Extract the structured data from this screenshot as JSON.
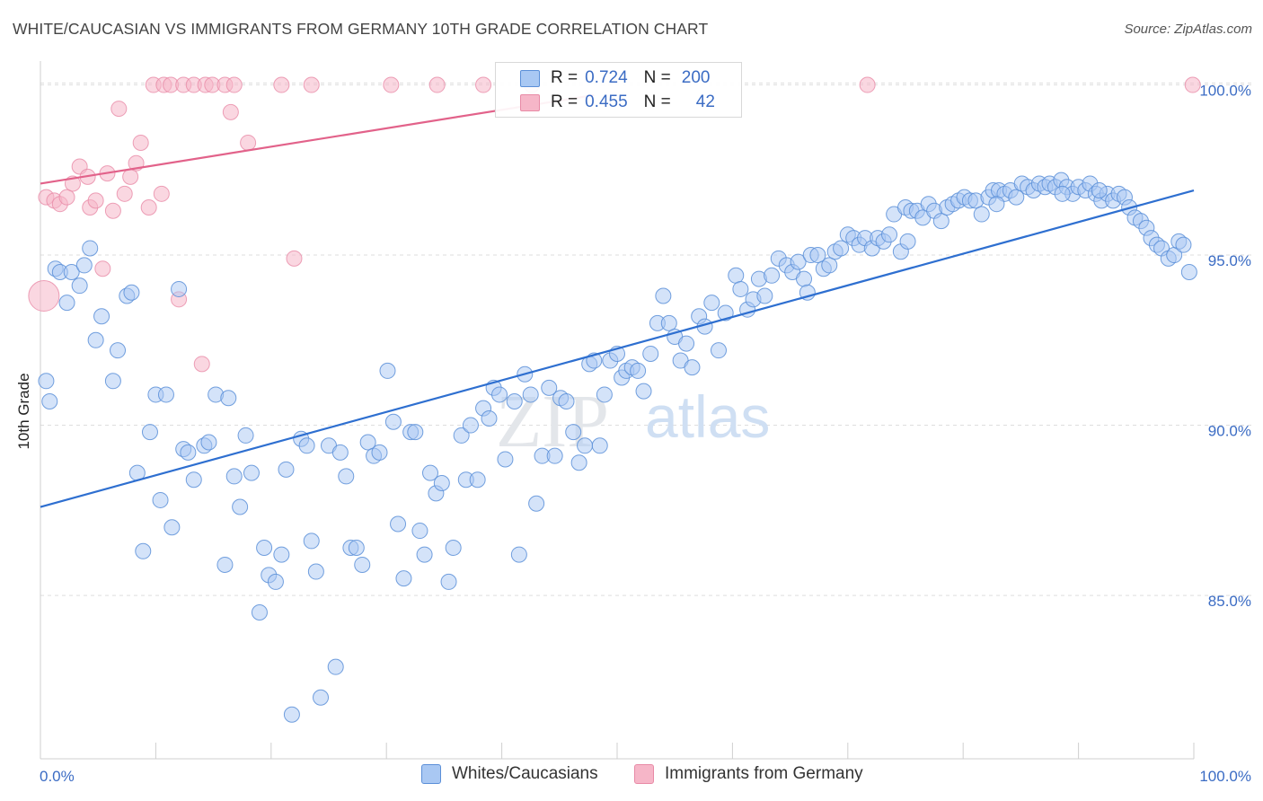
{
  "header": {
    "title": "WHITE/CAUCASIAN VS IMMIGRANTS FROM GERMANY 10TH GRADE CORRELATION CHART",
    "source": "Source: ZipAtlas.com"
  },
  "legend": {
    "rows": [
      {
        "r_label": "R =",
        "r_value": "0.724",
        "n_label": "N =",
        "n_value": "200",
        "color": "#a9c8f3"
      },
      {
        "r_label": "R =",
        "r_value": "0.455",
        "n_label": "N =",
        "n_value": "42",
        "color": "#f6b6c8"
      }
    ],
    "bottom": [
      {
        "label": "Whites/Caucasians",
        "color": "#a9c8f3"
      },
      {
        "label": "Immigrants from Germany",
        "color": "#f6b6c8"
      }
    ]
  },
  "watermark": {
    "zip": "ZIP",
    "atlas": "atlas"
  },
  "chart_data": {
    "type": "scatter",
    "title": "WHITE/CAUCASIAN VS IMMIGRANTS FROM GERMANY 10TH GRADE CORRELATION CHART",
    "xlabel": "",
    "ylabel": "10th Grade",
    "xlim": [
      0,
      100
    ],
    "ylim": [
      80.2,
      100.7
    ],
    "x_tick_labels": [
      "0.0%",
      "100.0%"
    ],
    "y_ticks": [
      85,
      90,
      95,
      100
    ],
    "y_tick_labels": [
      "85.0%",
      "90.0%",
      "95.0%",
      "100.0%"
    ],
    "grid": "horizontal dashed",
    "legend_position": "top-center",
    "colors": {
      "blue_fill": "#a9c8f3",
      "blue_stroke": "#5b8fd8",
      "blue_line": "#2e6fd0",
      "pink_fill": "#f6b6c8",
      "pink_stroke": "#e88aa6",
      "pink_line": "#e2628a"
    },
    "series": [
      {
        "name": "Whites/Caucasians",
        "trend": {
          "x": [
            0,
            100
          ],
          "y": [
            87.6,
            96.9
          ]
        },
        "points": [
          [
            0.5,
            91.3
          ],
          [
            0.8,
            90.7
          ],
          [
            1.3,
            94.6
          ],
          [
            1.7,
            94.5
          ],
          [
            2.3,
            93.6
          ],
          [
            2.7,
            94.5
          ],
          [
            3.4,
            94.1
          ],
          [
            3.8,
            94.7
          ],
          [
            4.3,
            95.2
          ],
          [
            4.8,
            92.5
          ],
          [
            5.3,
            93.2
          ],
          [
            6.3,
            91.3
          ],
          [
            6.7,
            92.2
          ],
          [
            7.5,
            93.8
          ],
          [
            7.9,
            93.9
          ],
          [
            8.4,
            88.6
          ],
          [
            8.9,
            86.3
          ],
          [
            9.5,
            89.8
          ],
          [
            10.0,
            90.9
          ],
          [
            10.4,
            87.8
          ],
          [
            10.9,
            90.9
          ],
          [
            11.4,
            87.0
          ],
          [
            12.0,
            94.0
          ],
          [
            12.4,
            89.3
          ],
          [
            12.8,
            89.2
          ],
          [
            13.3,
            88.4
          ],
          [
            14.2,
            89.4
          ],
          [
            14.6,
            89.5
          ],
          [
            15.2,
            90.9
          ],
          [
            16.0,
            85.9
          ],
          [
            16.3,
            90.8
          ],
          [
            16.8,
            88.5
          ],
          [
            17.3,
            87.6
          ],
          [
            17.8,
            89.7
          ],
          [
            18.3,
            88.6
          ],
          [
            19.0,
            84.5
          ],
          [
            19.4,
            86.4
          ],
          [
            19.8,
            85.6
          ],
          [
            20.4,
            85.4
          ],
          [
            20.9,
            86.2
          ],
          [
            21.3,
            88.7
          ],
          [
            21.8,
            81.5
          ],
          [
            22.6,
            89.6
          ],
          [
            23.1,
            89.4
          ],
          [
            23.5,
            86.6
          ],
          [
            23.9,
            85.7
          ],
          [
            24.3,
            82.0
          ],
          [
            25.0,
            89.4
          ],
          [
            25.6,
            82.9
          ],
          [
            26.0,
            89.2
          ],
          [
            26.5,
            88.5
          ],
          [
            26.9,
            86.4
          ],
          [
            27.4,
            86.4
          ],
          [
            27.9,
            85.9
          ],
          [
            28.4,
            89.5
          ],
          [
            28.9,
            89.1
          ],
          [
            29.4,
            89.2
          ],
          [
            30.1,
            91.6
          ],
          [
            30.6,
            90.1
          ],
          [
            31.0,
            87.1
          ],
          [
            31.5,
            85.5
          ],
          [
            32.1,
            89.8
          ],
          [
            32.5,
            89.8
          ],
          [
            32.9,
            86.9
          ],
          [
            33.3,
            86.2
          ],
          [
            33.8,
            88.6
          ],
          [
            34.3,
            88.0
          ],
          [
            34.8,
            88.3
          ],
          [
            35.4,
            85.4
          ],
          [
            35.8,
            86.4
          ],
          [
            36.5,
            89.7
          ],
          [
            36.9,
            88.4
          ],
          [
            37.3,
            90.0
          ],
          [
            37.9,
            88.4
          ],
          [
            38.4,
            90.5
          ],
          [
            38.9,
            90.2
          ],
          [
            39.3,
            91.1
          ],
          [
            39.8,
            90.9
          ],
          [
            40.3,
            89.0
          ],
          [
            41.1,
            90.7
          ],
          [
            41.5,
            86.2
          ],
          [
            42.0,
            91.5
          ],
          [
            42.5,
            90.9
          ],
          [
            43.0,
            87.7
          ],
          [
            43.5,
            89.1
          ],
          [
            44.1,
            91.1
          ],
          [
            44.6,
            89.1
          ],
          [
            45.1,
            90.8
          ],
          [
            45.6,
            90.7
          ],
          [
            46.2,
            89.8
          ],
          [
            46.7,
            88.9
          ],
          [
            47.2,
            89.4
          ],
          [
            47.6,
            91.8
          ],
          [
            48.0,
            91.9
          ],
          [
            48.5,
            89.4
          ],
          [
            48.9,
            90.9
          ],
          [
            49.4,
            91.9
          ],
          [
            50.0,
            92.1
          ],
          [
            50.4,
            91.4
          ],
          [
            50.8,
            91.6
          ],
          [
            51.3,
            91.7
          ],
          [
            51.8,
            91.6
          ],
          [
            52.3,
            91.0
          ],
          [
            52.9,
            92.1
          ],
          [
            53.5,
            93.0
          ],
          [
            54.0,
            93.8
          ],
          [
            54.5,
            93.0
          ],
          [
            55.0,
            92.6
          ],
          [
            55.5,
            91.9
          ],
          [
            56.0,
            92.4
          ],
          [
            56.5,
            91.7
          ],
          [
            57.1,
            93.2
          ],
          [
            57.6,
            92.9
          ],
          [
            58.2,
            93.6
          ],
          [
            58.8,
            92.2
          ],
          [
            59.4,
            93.3
          ],
          [
            60.3,
            94.4
          ],
          [
            60.7,
            94.0
          ],
          [
            61.3,
            93.4
          ],
          [
            61.8,
            93.7
          ],
          [
            62.3,
            94.3
          ],
          [
            62.8,
            93.8
          ],
          [
            63.4,
            94.4
          ],
          [
            64.0,
            94.9
          ],
          [
            64.7,
            94.7
          ],
          [
            65.2,
            94.5
          ],
          [
            65.7,
            94.8
          ],
          [
            66.2,
            94.3
          ],
          [
            66.8,
            95.0
          ],
          [
            67.4,
            95.0
          ],
          [
            67.9,
            94.6
          ],
          [
            68.4,
            94.7
          ],
          [
            68.9,
            95.1
          ],
          [
            69.4,
            95.2
          ],
          [
            70.0,
            95.6
          ],
          [
            70.5,
            95.5
          ],
          [
            71.0,
            95.3
          ],
          [
            71.5,
            95.5
          ],
          [
            72.1,
            95.2
          ],
          [
            72.6,
            95.5
          ],
          [
            73.1,
            95.4
          ],
          [
            73.6,
            95.6
          ],
          [
            74.0,
            96.2
          ],
          [
            74.6,
            95.1
          ],
          [
            75.0,
            96.4
          ],
          [
            75.5,
            96.3
          ],
          [
            76.0,
            96.3
          ],
          [
            76.5,
            96.1
          ],
          [
            77.0,
            96.5
          ],
          [
            77.5,
            96.3
          ],
          [
            78.1,
            96.0
          ],
          [
            78.6,
            96.4
          ],
          [
            79.1,
            96.5
          ],
          [
            79.6,
            96.6
          ],
          [
            80.1,
            96.7
          ],
          [
            80.6,
            96.6
          ],
          [
            81.1,
            96.6
          ],
          [
            81.6,
            96.2
          ],
          [
            82.2,
            96.7
          ],
          [
            82.6,
            96.9
          ],
          [
            83.1,
            96.9
          ],
          [
            83.6,
            96.8
          ],
          [
            84.1,
            96.9
          ],
          [
            84.6,
            96.7
          ],
          [
            85.1,
            97.1
          ],
          [
            85.6,
            97.0
          ],
          [
            86.1,
            96.9
          ],
          [
            86.6,
            97.1
          ],
          [
            87.1,
            97.0
          ],
          [
            87.5,
            97.1
          ],
          [
            88.0,
            97.0
          ],
          [
            88.5,
            97.2
          ],
          [
            89.0,
            97.0
          ],
          [
            89.5,
            96.8
          ],
          [
            90.0,
            97.0
          ],
          [
            90.6,
            96.9
          ],
          [
            91.0,
            97.1
          ],
          [
            91.5,
            96.8
          ],
          [
            92.0,
            96.6
          ],
          [
            92.5,
            96.8
          ],
          [
            93.0,
            96.6
          ],
          [
            93.5,
            96.8
          ],
          [
            94.0,
            96.7
          ],
          [
            94.4,
            96.4
          ],
          [
            94.9,
            96.1
          ],
          [
            95.4,
            96.0
          ],
          [
            95.9,
            95.8
          ],
          [
            96.3,
            95.5
          ],
          [
            96.8,
            95.3
          ],
          [
            97.2,
            95.2
          ],
          [
            97.8,
            94.9
          ],
          [
            98.3,
            95.0
          ],
          [
            98.7,
            95.4
          ],
          [
            99.1,
            95.3
          ],
          [
            99.6,
            94.5
          ],
          [
            66.5,
            93.9
          ],
          [
            75.2,
            95.4
          ],
          [
            82.9,
            96.5
          ],
          [
            88.6,
            96.8
          ],
          [
            91.8,
            96.9
          ]
        ]
      },
      {
        "name": "Immigrants from Germany",
        "trend": {
          "x": [
            0,
            48
          ],
          "y": [
            97.1,
            99.7
          ]
        },
        "points": [
          [
            0.3,
            93.8
          ],
          [
            0.5,
            96.7
          ],
          [
            1.2,
            96.6
          ],
          [
            1.7,
            96.5
          ],
          [
            2.3,
            96.7
          ],
          [
            2.8,
            97.1
          ],
          [
            3.4,
            97.6
          ],
          [
            4.3,
            96.4
          ],
          [
            4.1,
            97.3
          ],
          [
            4.8,
            96.6
          ],
          [
            5.4,
            94.6
          ],
          [
            5.8,
            97.4
          ],
          [
            6.3,
            96.3
          ],
          [
            6.8,
            99.3
          ],
          [
            7.3,
            96.8
          ],
          [
            7.8,
            97.3
          ],
          [
            8.3,
            97.7
          ],
          [
            8.7,
            98.3
          ],
          [
            9.4,
            96.4
          ],
          [
            9.8,
            100.0
          ],
          [
            10.5,
            96.8
          ],
          [
            10.7,
            100.0
          ],
          [
            11.3,
            100.0
          ],
          [
            12.0,
            93.7
          ],
          [
            12.4,
            100.0
          ],
          [
            13.3,
            100.0
          ],
          [
            14.0,
            91.8
          ],
          [
            14.3,
            100.0
          ],
          [
            14.9,
            100.0
          ],
          [
            16.0,
            100.0
          ],
          [
            16.5,
            99.2
          ],
          [
            16.8,
            100.0
          ],
          [
            18.0,
            98.3
          ],
          [
            20.9,
            100.0
          ],
          [
            22.0,
            94.9
          ],
          [
            23.5,
            100.0
          ],
          [
            30.4,
            100.0
          ],
          [
            34.4,
            100.0
          ],
          [
            38.4,
            100.0
          ],
          [
            42.6,
            100.0
          ],
          [
            71.7,
            100.0
          ],
          [
            99.9,
            100.0
          ]
        ]
      }
    ]
  }
}
